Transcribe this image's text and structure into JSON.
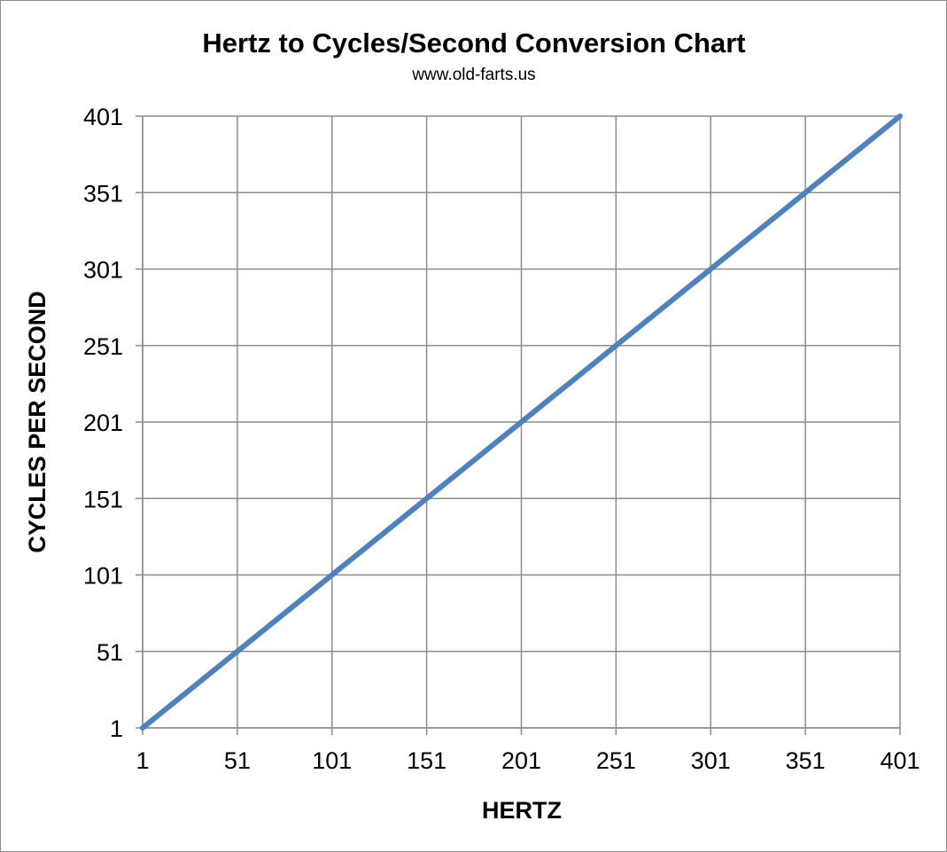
{
  "chart_data": {
    "type": "line",
    "title": "Hertz to Cycles/Second Conversion Chart",
    "subtitle": "www.old-farts.us",
    "xlabel": "HERTZ",
    "ylabel": "CYCLES PER SECOND",
    "xlim": [
      1,
      401
    ],
    "ylim": [
      1,
      401
    ],
    "x_ticks": [
      "1",
      "51",
      "101",
      "151",
      "201",
      "251",
      "301",
      "351",
      "401"
    ],
    "y_ticks": [
      "1",
      "51",
      "101",
      "151",
      "201",
      "251",
      "301",
      "351",
      "401"
    ],
    "grid": true,
    "legend": "none",
    "series": [
      {
        "color": "#4f81bd",
        "x": [
          1,
          51,
          101,
          151,
          201,
          251,
          301,
          351,
          401
        ],
        "y": [
          1,
          51,
          101,
          151,
          201,
          251,
          301,
          351,
          401
        ]
      }
    ]
  }
}
